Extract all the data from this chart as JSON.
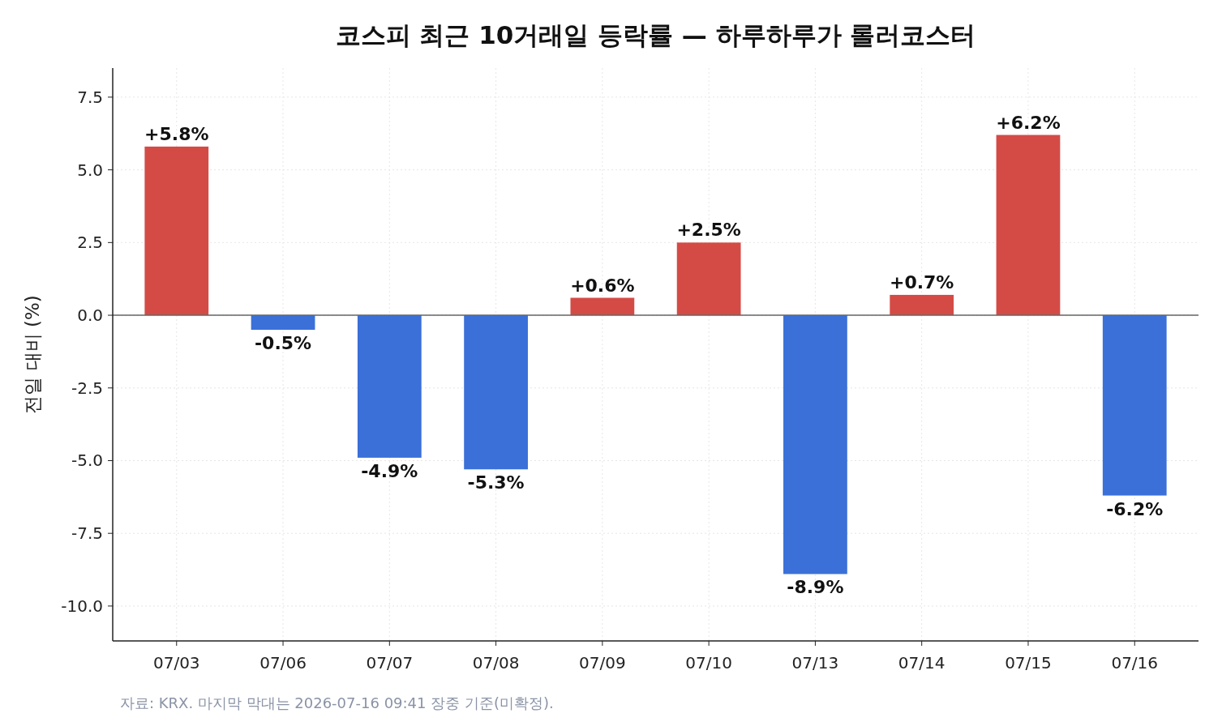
{
  "chart_data": {
    "type": "bar",
    "title": "코스피 최근 10거래일 등락률 — 하루하루가 롤러코스터",
    "ylabel": "전일 대비 (%)",
    "categories": [
      "07/03",
      "07/06",
      "07/07",
      "07/08",
      "07/09",
      "07/10",
      "07/13",
      "07/14",
      "07/15",
      "07/16"
    ],
    "values": [
      5.8,
      -0.5,
      -4.9,
      -5.3,
      0.6,
      2.5,
      -8.9,
      0.7,
      6.2,
      -6.2
    ],
    "colors": [
      "#d44b46",
      "#3a70d8",
      "#3a70d8",
      "#3a70d8",
      "#d44b46",
      "#d44b46",
      "#3a70d8",
      "#d44b46",
      "#d44b46",
      "#3a70d8"
    ],
    "value_labels": [
      "+5.8%",
      "-0.5%",
      "-4.9%",
      "-5.3%",
      "+0.6%",
      "+2.5%",
      "-8.9%",
      "+0.7%",
      "+6.2%",
      "-6.2%"
    ],
    "ylim": [
      -11.2,
      8.5
    ],
    "yticks": [
      {
        "value": -10,
        "label": "-10.0"
      },
      {
        "value": -7.5,
        "label": "-7.5"
      },
      {
        "value": -5,
        "label": "-5.0"
      },
      {
        "value": -2.5,
        "label": "-2.5"
      },
      {
        "value": 0,
        "label": "0.0"
      },
      {
        "value": 2.5,
        "label": "2.5"
      },
      {
        "value": 5,
        "label": "5.0"
      },
      {
        "value": 7.5,
        "label": "7.5"
      }
    ],
    "grid": true,
    "ref_lines": [
      {
        "axis": "y",
        "value": 0,
        "color": "#666666"
      }
    ],
    "annotations": [
      "자료: KRX. 마지막 막대는 2026-07-16 09:41 장중 기준(미확정)."
    ]
  }
}
